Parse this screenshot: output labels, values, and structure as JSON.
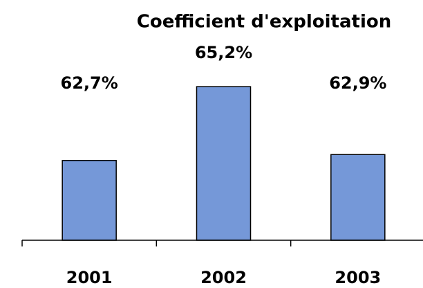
{
  "chart_data": {
    "type": "bar",
    "title": "Coefficient d'exploitation",
    "categories": [
      "2001",
      "2002",
      "2003"
    ],
    "values": [
      62.7,
      65.2,
      62.9
    ],
    "value_labels": [
      "62,7%",
      "65,2%",
      "62,9%"
    ],
    "color": "#7598d8",
    "ylim": [
      60,
      66
    ]
  }
}
